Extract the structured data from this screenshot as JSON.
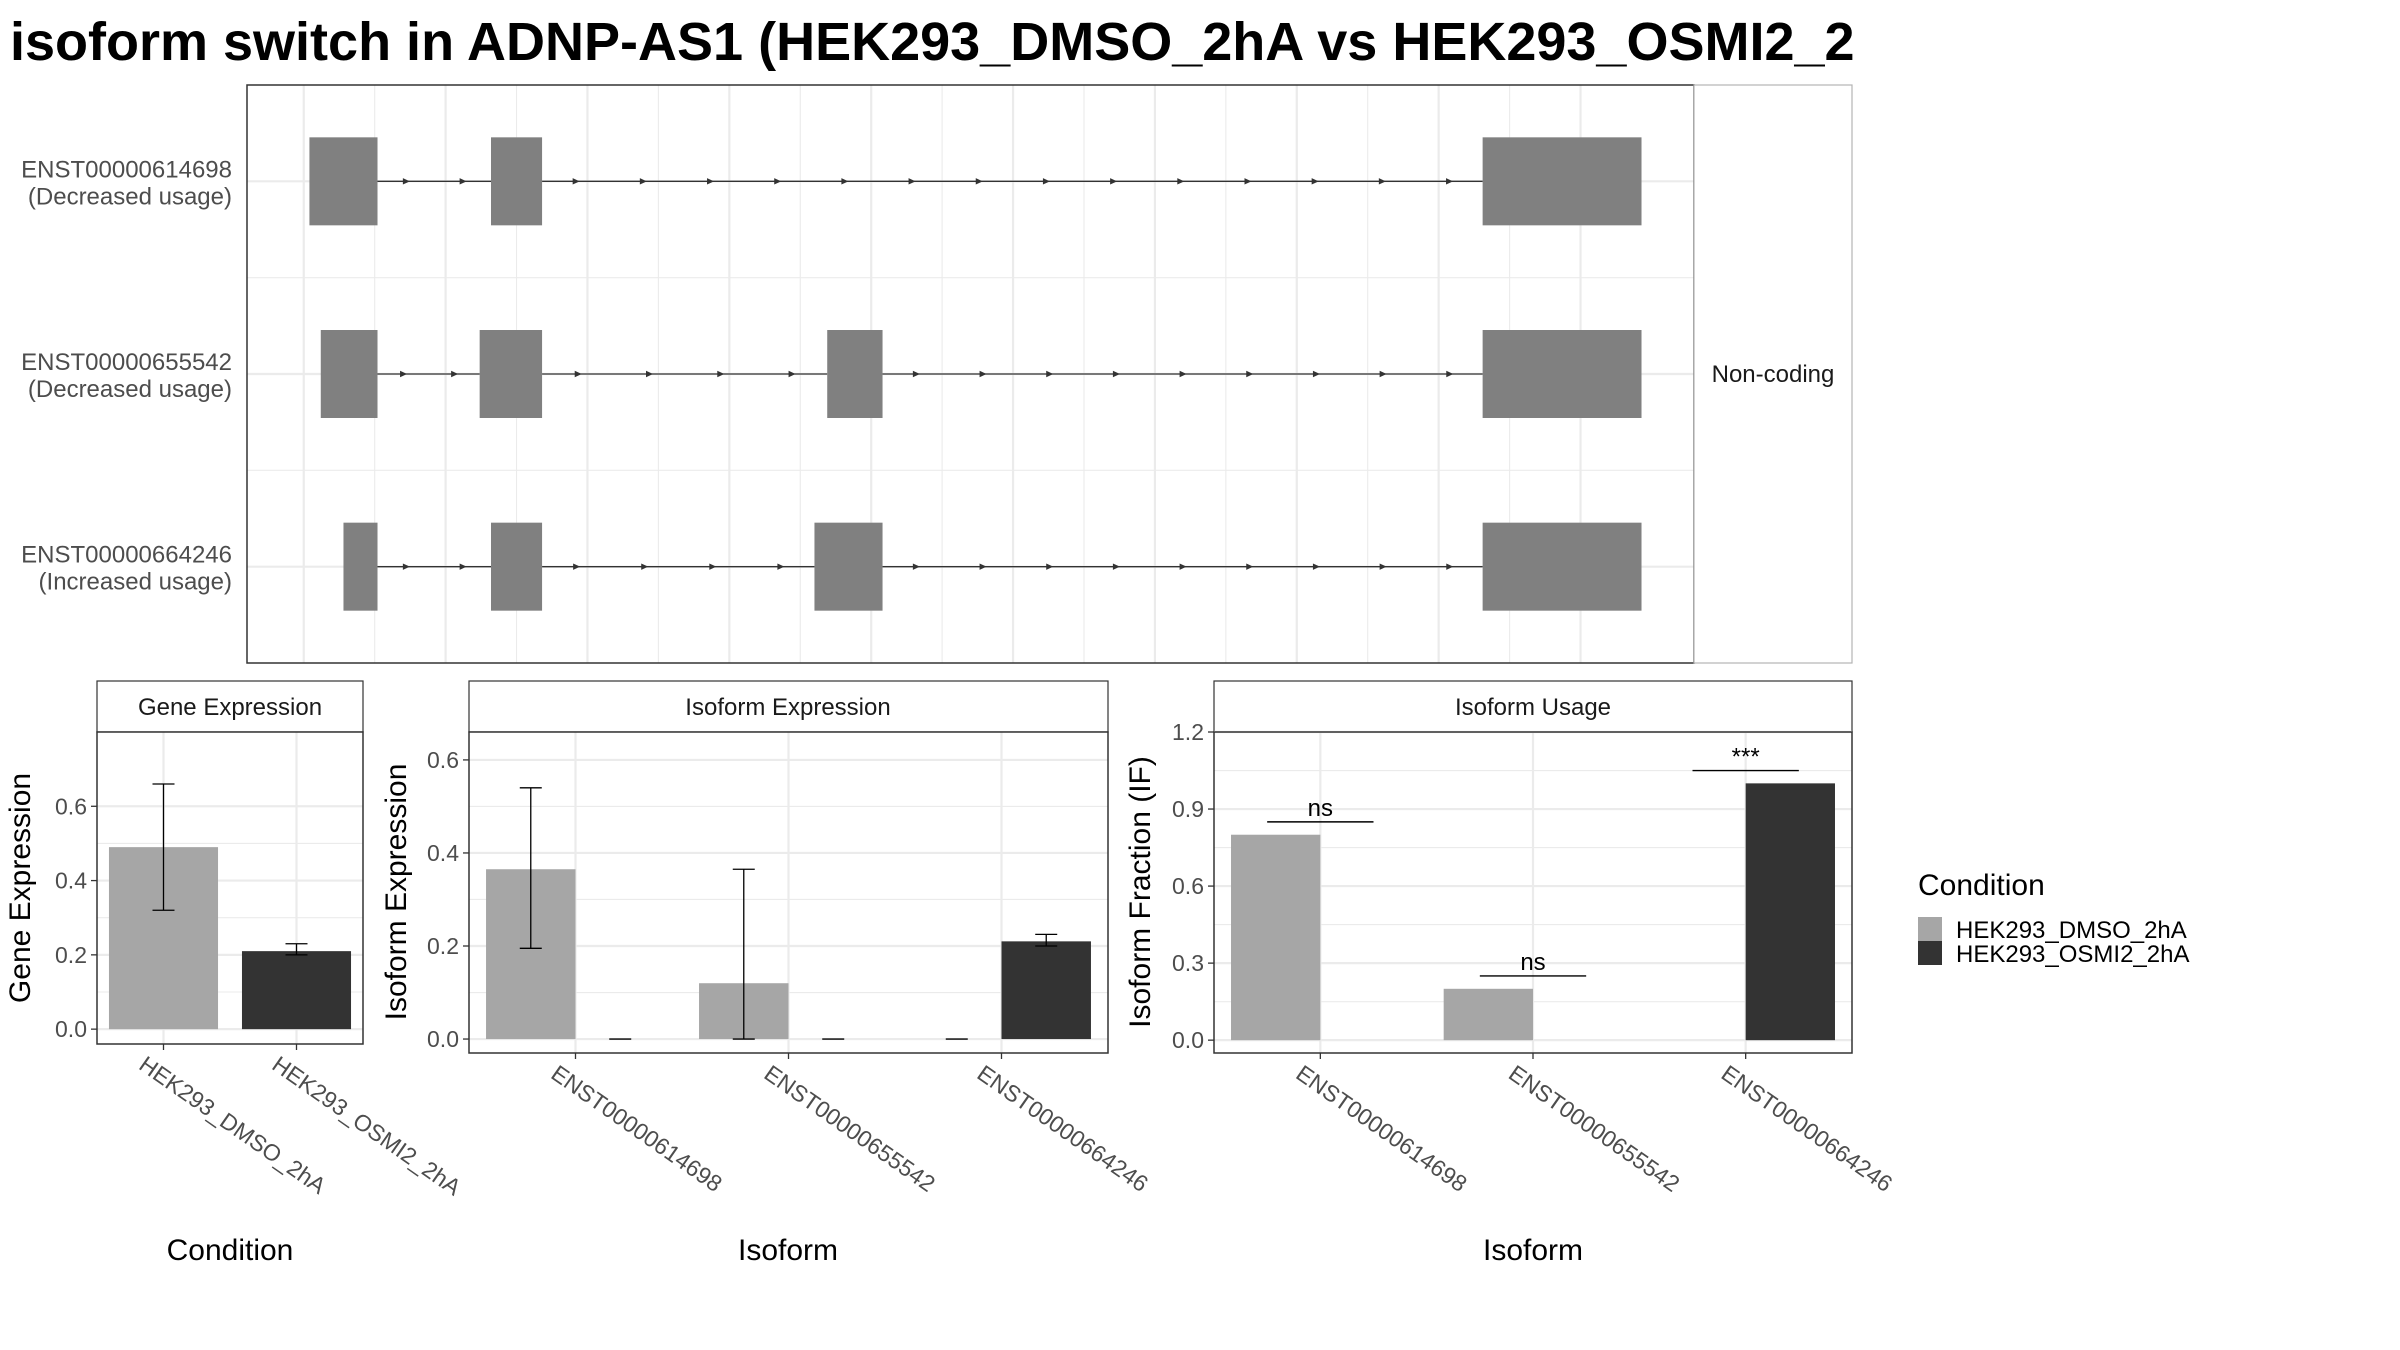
{
  "title": "isoform switch in ADNP-AS1 (HEK293_DMSO_2hA vs HEK293_OSMI2_2",
  "colors": {
    "exon": "#808080",
    "intron": "#333333",
    "grid": "#ebebeb",
    "panel_border": "#333333",
    "strip_fill": "#ffffff",
    "condition_1": "#a6a6a6",
    "condition_2": "#333333"
  },
  "structure": {
    "side_label": "Non-coding",
    "x_breaks": [
      0,
      1,
      2,
      3,
      4,
      5,
      6,
      7,
      8,
      9
    ],
    "x_range": [
      -0.4,
      9.8
    ],
    "transcripts": [
      {
        "id": "ENST00000614698",
        "label_line1": "ENST00000614698",
        "label_line2": "(Decreased usage)",
        "exons": [
          [
            0.04,
            0.52
          ],
          [
            1.32,
            1.68
          ],
          [
            8.31,
            9.43
          ]
        ]
      },
      {
        "id": "ENST00000655542",
        "label_line1": "ENST00000655542",
        "label_line2": "(Decreased usage)",
        "exons": [
          [
            0.12,
            0.52
          ],
          [
            1.24,
            1.68
          ],
          [
            3.69,
            4.08
          ],
          [
            8.31,
            9.43
          ]
        ]
      },
      {
        "id": "ENST00000664246",
        "label_line1": "ENST00000664246",
        "label_line2": "(Increased usage)",
        "exons": [
          [
            0.28,
            0.52
          ],
          [
            1.32,
            1.68
          ],
          [
            3.6,
            4.08
          ],
          [
            8.31,
            9.43
          ]
        ]
      }
    ]
  },
  "legend": {
    "title": "Condition",
    "items": [
      "HEK293_DMSO_2hA",
      "HEK293_OSMI2_2hA"
    ]
  },
  "chart_data": [
    {
      "type": "bar",
      "title": "Gene Expression",
      "xlabel": "Condition",
      "ylabel": "Gene Expression",
      "categories": [
        "HEK293_DMSO_2hA",
        "HEK293_OSMI2_2hA"
      ],
      "ylim": [
        -0.04,
        0.8
      ],
      "yticks": [
        0.0,
        0.2,
        0.4,
        0.6
      ],
      "ytick_labels": [
        "0.0",
        "0.2",
        "0.4",
        "0.6"
      ],
      "bars": [
        {
          "category": "HEK293_DMSO_2hA",
          "condition": "HEK293_DMSO_2hA",
          "value": 0.49,
          "err_low": 0.32,
          "err_high": 0.66
        },
        {
          "category": "HEK293_OSMI2_2hA",
          "condition": "HEK293_OSMI2_2hA",
          "value": 0.21,
          "err_low": 0.2,
          "err_high": 0.23
        }
      ]
    },
    {
      "type": "bar",
      "title": "Isoform Expression",
      "xlabel": "Isoform",
      "ylabel": "Isoform Expression",
      "categories": [
        "ENST00000614698",
        "ENST00000655542",
        "ENST00000664246"
      ],
      "ylim": [
        -0.03,
        0.66
      ],
      "yticks": [
        0.0,
        0.2,
        0.4,
        0.6
      ],
      "ytick_labels": [
        "0.0",
        "0.2",
        "0.4",
        "0.6"
      ],
      "series": [
        {
          "name": "HEK293_DMSO_2hA",
          "values": [
            0.365,
            0.12,
            0.0
          ],
          "err_low": [
            0.195,
            0.0,
            0.0
          ],
          "err_high": [
            0.54,
            0.365,
            0.0
          ]
        },
        {
          "name": "HEK293_OSMI2_2hA",
          "values": [
            0.0,
            0.0,
            0.21
          ],
          "err_low": [
            0.0,
            0.0,
            0.2
          ],
          "err_high": [
            0.0,
            0.0,
            0.225
          ]
        }
      ]
    },
    {
      "type": "bar",
      "title": "Isoform Usage",
      "xlabel": "Isoform",
      "ylabel": "Isoform Fraction (IF)",
      "categories": [
        "ENST00000614698",
        "ENST00000655542",
        "ENST00000664246"
      ],
      "ylim": [
        -0.05,
        1.2
      ],
      "yticks": [
        0.0,
        0.3,
        0.6,
        0.9,
        1.2
      ],
      "ytick_labels": [
        "0.0",
        "0.3",
        "0.6",
        "0.9",
        "1.2"
      ],
      "series": [
        {
          "name": "HEK293_DMSO_2hA",
          "values": [
            0.8,
            0.2,
            0.0
          ]
        },
        {
          "name": "HEK293_OSMI2_2hA",
          "values": [
            0.0,
            0.0,
            1.0
          ]
        }
      ],
      "annotations": [
        {
          "category": "ENST00000614698",
          "label": "ns",
          "y": 0.85
        },
        {
          "category": "ENST00000655542",
          "label": "ns",
          "y": 0.25
        },
        {
          "category": "ENST00000664246",
          "label": "***",
          "y": 1.05
        }
      ]
    }
  ]
}
